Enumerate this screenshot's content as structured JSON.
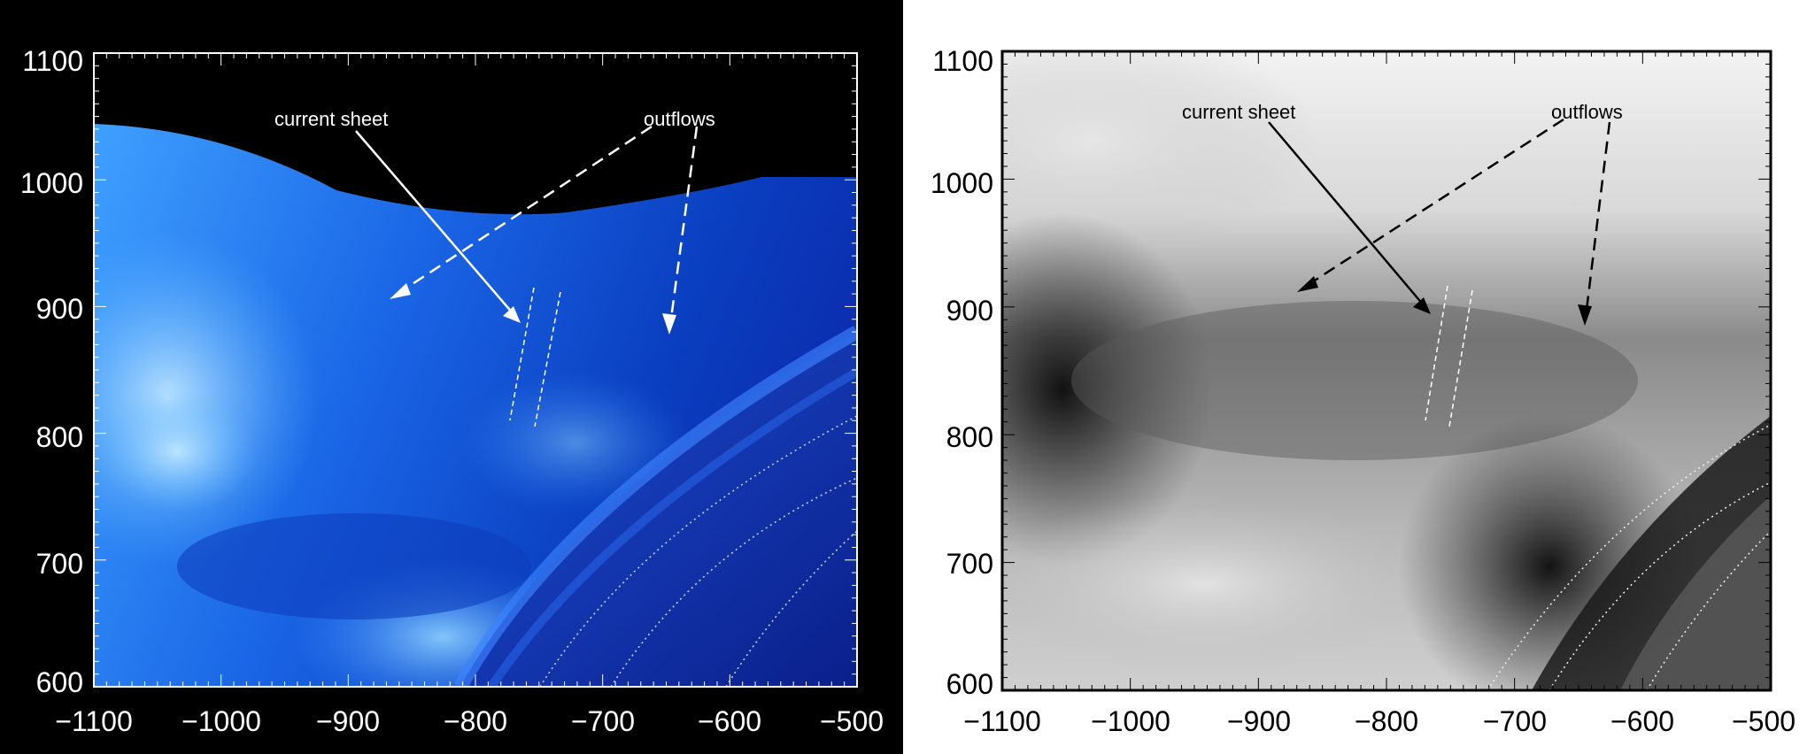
{
  "panels": [
    {
      "id": "left",
      "colormap": "blue",
      "x_ticks": [
        "−1100",
        "−1000",
        "−900",
        "−800",
        "−700",
        "−600",
        "−500"
      ],
      "y_ticks": [
        "1100",
        "1000",
        "900",
        "800",
        "700",
        "600"
      ],
      "annotations": {
        "current_sheet": "current sheet",
        "outflows": "outflows"
      },
      "colors": {
        "background": "#000000",
        "axis": "#ffffff",
        "text": "#ffffff",
        "arrow": "#ffffff"
      }
    },
    {
      "id": "right",
      "colormap": "grayscale",
      "x_ticks": [
        "−1100",
        "−1000",
        "−900",
        "−800",
        "−700",
        "−600",
        "−500"
      ],
      "y_ticks": [
        "1100",
        "1000",
        "900",
        "800",
        "700",
        "600"
      ],
      "annotations": {
        "current_sheet": "current sheet",
        "outflows": "outflows"
      },
      "colors": {
        "background": "#ffffff",
        "axis": "#000000",
        "text": "#000000",
        "arrow": "#000000"
      }
    }
  ],
  "chart_data": [
    {
      "type": "heatmap",
      "x_range": [
        -1100,
        -500
      ],
      "y_range": [
        600,
        1100
      ],
      "x_ticks": [
        -1100,
        -1000,
        -900,
        -800,
        -700,
        -600,
        -500
      ],
      "y_ticks": [
        1100,
        1000,
        900,
        800,
        700,
        600
      ],
      "colormap": "blue",
      "annotations": [
        {
          "text": "current sheet",
          "arrow_to": [
            -765,
            890
          ],
          "style": "solid"
        },
        {
          "text": "outflows",
          "arrow_to": [
            -865,
            905
          ],
          "style": "dashed"
        },
        {
          "text": "outflows",
          "arrow_to": [
            -660,
            880
          ],
          "style": "dashed"
        }
      ]
    },
    {
      "type": "heatmap",
      "x_range": [
        -1100,
        -500
      ],
      "y_range": [
        600,
        1100
      ],
      "x_ticks": [
        -1100,
        -1000,
        -900,
        -800,
        -700,
        -600,
        -500
      ],
      "y_ticks": [
        1100,
        1000,
        900,
        800,
        700,
        600
      ],
      "colormap": "grayscale",
      "annotations": [
        {
          "text": "current sheet",
          "arrow_to": [
            -765,
            890
          ],
          "style": "solid"
        },
        {
          "text": "outflows",
          "arrow_to": [
            -865,
            905
          ],
          "style": "dashed"
        },
        {
          "text": "outflows",
          "arrow_to": [
            -660,
            880
          ],
          "style": "dashed"
        }
      ]
    }
  ]
}
